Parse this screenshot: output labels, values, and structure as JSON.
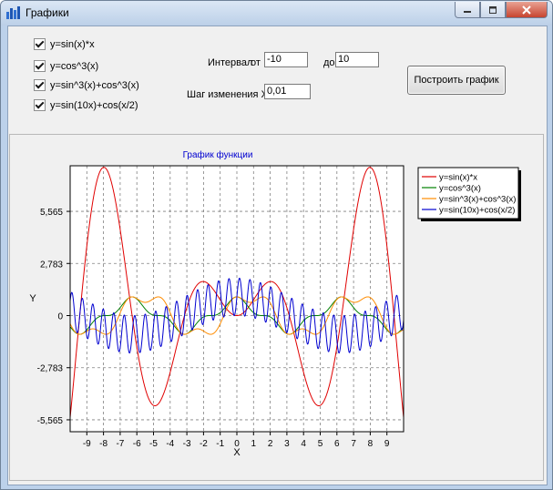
{
  "window": {
    "title": "Графики",
    "icon": "app-chart-icon"
  },
  "titlebar_buttons": [
    "minimize-icon",
    "maximize-icon",
    "close-icon"
  ],
  "checkboxes": [
    {
      "label": "y=sin(x)*x",
      "checked": true
    },
    {
      "label": "y=cos^3(x)",
      "checked": true
    },
    {
      "label": "y=sin^3(x)+cos^3(x)",
      "checked": true
    },
    {
      "label": "y=sin(10x)+cos(x/2)",
      "checked": true
    }
  ],
  "interval": {
    "label": "Интервал",
    "from_label": "от",
    "from_value": "-10",
    "to_label": "до",
    "to_value": "10"
  },
  "step": {
    "label": "Шаг изменения X",
    "value": "0,01"
  },
  "build_button": "Построить график",
  "chart_data": {
    "type": "line",
    "title": "График функции",
    "xlabel": "X",
    "ylabel": "Y",
    "xlim": [
      -10,
      10
    ],
    "ylim": [
      -6.2,
      8.0
    ],
    "x_ticks": [
      -9,
      -8,
      -7,
      -6,
      -5,
      -4,
      -3,
      -2,
      -1,
      0,
      1,
      2,
      3,
      4,
      5,
      6,
      7,
      8,
      9
    ],
    "y_ticks": [
      {
        "value": 5.565,
        "label": "5,565"
      },
      {
        "value": 2.783,
        "label": "2,783"
      },
      {
        "value": 0,
        "label": "0"
      },
      {
        "value": -2.783,
        "label": "-2,783"
      },
      {
        "value": -5.565,
        "label": "-5,565"
      }
    ],
    "grid": true,
    "legend_position": "right",
    "series": [
      {
        "name": "y=sin(x)*x",
        "formula": "sin(x)*x",
        "color": "#e00000"
      },
      {
        "name": "y=cos^3(x)",
        "formula": "cos^3(x)",
        "color": "#008000"
      },
      {
        "name": "y=sin^3(x)+cos^3(x)",
        "formula": "sin^3(x)+cos^3(x)",
        "color": "#ff8c00"
      },
      {
        "name": "y=sin(10x)+cos(x/2)",
        "formula": "sin(10x)+cos(x/2)",
        "color": "#0000d0"
      }
    ]
  }
}
